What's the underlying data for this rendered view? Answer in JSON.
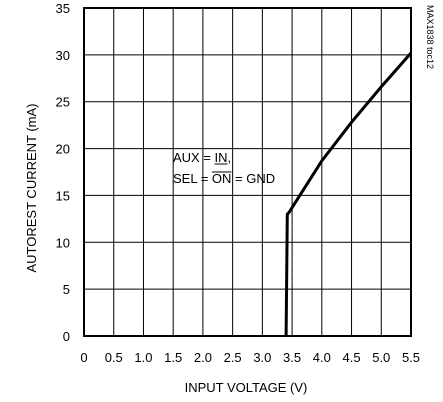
{
  "chart_data": {
    "type": "line",
    "title": "",
    "xlabel": "INPUT VOLTAGE (V)",
    "ylabel": "AUTOREST CURRENT (mA)",
    "xlim": [
      0,
      5.5
    ],
    "ylim": [
      0,
      35
    ],
    "grid": true,
    "x_ticks": [
      "0",
      "0.5",
      "1.0",
      "1.5",
      "2.0",
      "2.5",
      "3.0",
      "3.5",
      "4.0",
      "4.5",
      "5.0",
      "5.5"
    ],
    "y_ticks": [
      "0",
      "5",
      "10",
      "15",
      "20",
      "25",
      "30",
      "35"
    ],
    "series": [
      {
        "x": [
          3.4,
          3.42,
          3.45,
          4.0,
          4.5,
          5.0,
          5.5
        ],
        "y": [
          0,
          13.0,
          13.2,
          18.7,
          22.8,
          26.6,
          30.2
        ]
      }
    ],
    "annotations": [
      {
        "text_before": "AUX = ",
        "text_over": "IN",
        "text_after": ","
      },
      {
        "text_before": "SEL = ",
        "text_over": "ON",
        "text_after": " = GND"
      }
    ],
    "figure_code": "MAX1838 toc12"
  }
}
